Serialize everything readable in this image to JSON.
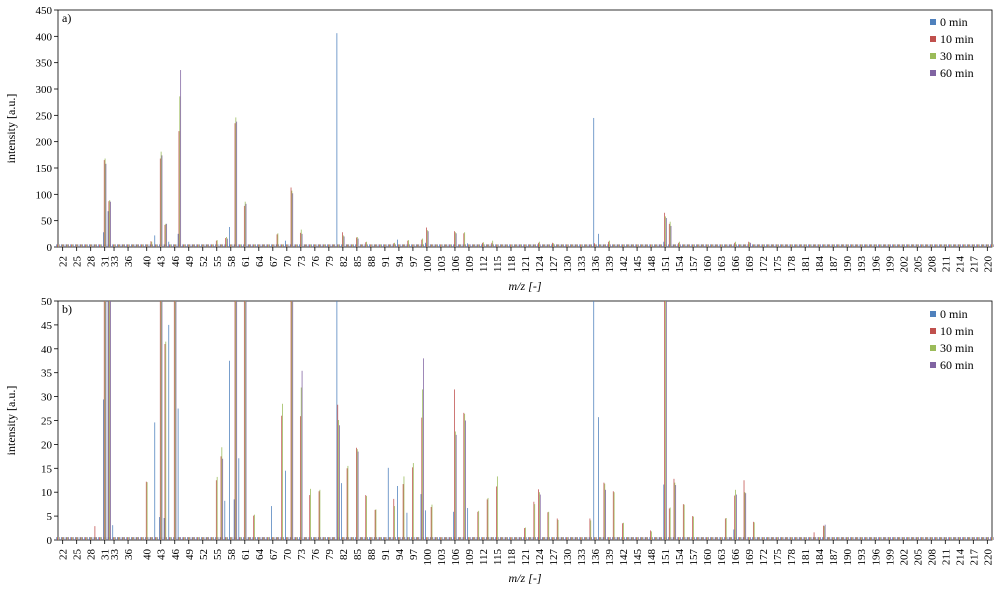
{
  "chart_data": [
    {
      "type": "bar",
      "panel_label": "a)",
      "xlabel": "m/z [-]",
      "ylabel": "intensity [a.u.]",
      "xlim": [
        21,
        221
      ],
      "ylim": [
        0,
        450
      ],
      "yticks": [
        0,
        50,
        100,
        150,
        200,
        250,
        300,
        350,
        400,
        450
      ],
      "xticks": [
        22,
        25,
        28,
        31,
        33,
        36,
        40,
        43,
        46,
        49,
        52,
        55,
        58,
        61,
        64,
        67,
        70,
        73,
        76,
        79,
        82,
        85,
        88,
        91,
        94,
        97,
        100,
        103,
        106,
        109,
        112,
        115,
        118,
        121,
        124,
        127,
        130,
        133,
        136,
        139,
        142,
        145,
        148,
        151,
        154,
        157,
        160,
        163,
        166,
        169,
        172,
        175,
        178,
        181,
        184,
        187,
        190,
        193,
        196,
        199,
        202,
        205,
        208,
        211,
        214,
        217,
        220
      ],
      "grid": false,
      "legend_position": "top-right",
      "baseline": 5,
      "series": [
        {
          "name": "0 min",
          "color": "#4f81bd",
          "points": [
            [
              31,
              28
            ],
            [
              32,
              68
            ],
            [
              42,
              22
            ],
            [
              45,
              10
            ],
            [
              47,
              25
            ],
            [
              58,
              38
            ],
            [
              70,
              12
            ],
            [
              81,
              406
            ],
            [
              94,
              14
            ],
            [
              100,
              8
            ],
            [
              109,
              7
            ],
            [
              136,
              245
            ],
            [
              137,
              25
            ],
            [
              151,
              10
            ]
          ]
        },
        {
          "name": "10 min",
          "color": "#c0504d",
          "points": [
            [
              31,
              165
            ],
            [
              32,
              87
            ],
            [
              41,
              11
            ],
            [
              43,
              168
            ],
            [
              44,
              42
            ],
            [
              47,
              220
            ],
            [
              55,
              12
            ],
            [
              57,
              17
            ],
            [
              59,
              235
            ],
            [
              61,
              78
            ],
            [
              68,
              24
            ],
            [
              71,
              113
            ],
            [
              73,
              27
            ],
            [
              82,
              28
            ],
            [
              85,
              18
            ],
            [
              87,
              9
            ],
            [
              93,
              7
            ],
            [
              96,
              12
            ],
            [
              99,
              14
            ],
            [
              100,
              37
            ],
            [
              106,
              30
            ],
            [
              108,
              26
            ],
            [
              112,
              8
            ],
            [
              114,
              8
            ],
            [
              124,
              8
            ],
            [
              127,
              8
            ],
            [
              136,
              7
            ],
            [
              139,
              10
            ],
            [
              151,
              65
            ],
            [
              152,
              44
            ],
            [
              154,
              8
            ],
            [
              166,
              8
            ],
            [
              169,
              10
            ]
          ]
        },
        {
          "name": "30 min",
          "color": "#9bbb59",
          "points": [
            [
              31,
              168
            ],
            [
              32,
              89
            ],
            [
              41,
              10
            ],
            [
              43,
              181
            ],
            [
              44,
              44
            ],
            [
              47,
              286
            ],
            [
              55,
              13
            ],
            [
              57,
              19
            ],
            [
              59,
              246
            ],
            [
              61,
              86
            ],
            [
              68,
              26
            ],
            [
              71,
              107
            ],
            [
              73,
              33
            ],
            [
              82,
              22
            ],
            [
              85,
              19
            ],
            [
              87,
              10
            ],
            [
              93,
              8
            ],
            [
              96,
              13
            ],
            [
              99,
              16
            ],
            [
              100,
              32
            ],
            [
              106,
              28
            ],
            [
              108,
              28
            ],
            [
              112,
              9
            ],
            [
              114,
              12
            ],
            [
              124,
              10
            ],
            [
              127,
              7
            ],
            [
              139,
              12
            ],
            [
              151,
              58
            ],
            [
              152,
              48
            ],
            [
              154,
              10
            ],
            [
              166,
              10
            ],
            [
              169,
              9
            ]
          ]
        },
        {
          "name": "60 min",
          "color": "#8064a2",
          "points": [
            [
              31,
              158
            ],
            [
              32,
              86
            ],
            [
              43,
              174
            ],
            [
              44,
              44
            ],
            [
              47,
              336
            ],
            [
              57,
              16
            ],
            [
              59,
              238
            ],
            [
              61,
              82
            ],
            [
              71,
              102
            ],
            [
              73,
              25
            ],
            [
              82,
              20
            ],
            [
              85,
              16
            ],
            [
              100,
              30
            ],
            [
              106,
              26
            ],
            [
              151,
              55
            ],
            [
              152,
              40
            ],
            [
              169,
              8
            ]
          ]
        }
      ]
    },
    {
      "type": "bar",
      "panel_label": "b)",
      "xlabel": "m/z [-]",
      "ylabel": "intensity [a.u.]",
      "xlim": [
        21,
        221
      ],
      "ylim": [
        0,
        50
      ],
      "yticks": [
        0,
        5,
        10,
        15,
        20,
        25,
        30,
        35,
        40,
        45,
        50
      ],
      "xticks": [
        22,
        25,
        28,
        31,
        33,
        36,
        40,
        43,
        46,
        49,
        52,
        55,
        58,
        61,
        64,
        67,
        70,
        73,
        76,
        79,
        82,
        85,
        88,
        91,
        94,
        97,
        100,
        103,
        106,
        109,
        112,
        115,
        118,
        121,
        124,
        127,
        130,
        133,
        136,
        139,
        142,
        145,
        148,
        151,
        154,
        157,
        160,
        163,
        166,
        169,
        172,
        175,
        178,
        181,
        184,
        187,
        190,
        193,
        196,
        199,
        202,
        205,
        208,
        211,
        214,
        217,
        220
      ],
      "grid": false,
      "legend_position": "top-right",
      "baseline": 0.6,
      "series": [
        {
          "name": "0 min",
          "color": "#4f81bd",
          "points": [
            [
              31,
              29.4
            ],
            [
              32,
              50
            ],
            [
              33,
              3.1
            ],
            [
              42,
              24.6
            ],
            [
              43,
              4.8
            ],
            [
              44,
              4.6
            ],
            [
              45,
              45
            ],
            [
              47,
              27.5
            ],
            [
              57,
              8.2
            ],
            [
              58,
              37.5
            ],
            [
              59,
              8.5
            ],
            [
              60,
              17.1
            ],
            [
              67,
              7.1
            ],
            [
              70,
              14.5
            ],
            [
              81,
              50
            ],
            [
              82,
              11.9
            ],
            [
              92,
              15.1
            ],
            [
              94,
              11.3
            ],
            [
              96,
              5.7
            ],
            [
              99,
              9.6
            ],
            [
              100,
              6.2
            ],
            [
              106,
              5.9
            ],
            [
              109,
              6.7
            ],
            [
              136,
              50
            ],
            [
              137,
              25.7
            ],
            [
              151,
              11.6
            ],
            [
              166,
              2.2
            ]
          ]
        },
        {
          "name": "10 min",
          "color": "#c0504d",
          "points": [
            [
              29,
              2.9
            ],
            [
              31,
              50
            ],
            [
              32,
              50
            ],
            [
              40,
              12.2
            ],
            [
              43,
              50
            ],
            [
              44,
              41
            ],
            [
              46,
              50
            ],
            [
              55,
              12.5
            ],
            [
              56,
              17.5
            ],
            [
              59,
              50
            ],
            [
              61,
              50
            ],
            [
              63,
              5.1
            ],
            [
              69,
              26
            ],
            [
              71,
              50
            ],
            [
              73,
              25.9
            ],
            [
              75,
              9.4
            ],
            [
              77,
              10.2
            ],
            [
              81,
              28.3
            ],
            [
              83,
              15
            ],
            [
              85,
              19.3
            ],
            [
              87,
              9.4
            ],
            [
              89,
              6.3
            ],
            [
              93,
              8.6
            ],
            [
              95,
              11.7
            ],
            [
              97,
              15.2
            ],
            [
              99,
              25.6
            ],
            [
              101,
              6.9
            ],
            [
              106,
              31.5
            ],
            [
              108,
              26.6
            ],
            [
              111,
              5.9
            ],
            [
              113,
              8.5
            ],
            [
              115,
              11.2
            ],
            [
              121,
              2.5
            ],
            [
              123,
              8
            ],
            [
              124,
              10.6
            ],
            [
              126,
              5.8
            ],
            [
              128,
              4.5
            ],
            [
              135,
              4.5
            ],
            [
              138,
              12
            ],
            [
              140,
              10.2
            ],
            [
              142,
              3.5
            ],
            [
              148,
              2
            ],
            [
              151,
              50
            ],
            [
              152,
              6.6
            ],
            [
              153,
              12.8
            ],
            [
              155,
              7.5
            ],
            [
              157,
              5
            ],
            [
              164,
              4.5
            ],
            [
              166,
              9.3
            ],
            [
              168,
              12.5
            ],
            [
              170,
              3.8
            ],
            [
              183,
              1.6
            ],
            [
              185,
              3
            ]
          ]
        },
        {
          "name": "30 min",
          "color": "#9bbb59",
          "points": [
            [
              31,
              50
            ],
            [
              32,
              50
            ],
            [
              40,
              12.1
            ],
            [
              43,
              50
            ],
            [
              44,
              41.5
            ],
            [
              46,
              50
            ],
            [
              55,
              13.2
            ],
            [
              56,
              19.4
            ],
            [
              59,
              50
            ],
            [
              61,
              50
            ],
            [
              63,
              5.3
            ],
            [
              69,
              28.5
            ],
            [
              71,
              50
            ],
            [
              73,
              31.9
            ],
            [
              75,
              10.7
            ],
            [
              77,
              10.5
            ],
            [
              81,
              25.1
            ],
            [
              83,
              15.5
            ],
            [
              85,
              19
            ],
            [
              87,
              9.2
            ],
            [
              89,
              6.4
            ],
            [
              93,
              7.1
            ],
            [
              95,
              13.3
            ],
            [
              97,
              16.1
            ],
            [
              99,
              31.5
            ],
            [
              101,
              7.4
            ],
            [
              106,
              22.7
            ],
            [
              108,
              26.4
            ],
            [
              111,
              6.1
            ],
            [
              113,
              8.8
            ],
            [
              115,
              13.3
            ],
            [
              121,
              2.6
            ],
            [
              123,
              7.5
            ],
            [
              124,
              10
            ],
            [
              126,
              5.9
            ],
            [
              128,
              4.2
            ],
            [
              135,
              4.1
            ],
            [
              138,
              11.8
            ],
            [
              140,
              10
            ],
            [
              142,
              3.6
            ],
            [
              148,
              1.8
            ],
            [
              151,
              50
            ],
            [
              152,
              6.8
            ],
            [
              153,
              12
            ],
            [
              155,
              7.4
            ],
            [
              157,
              4.9
            ],
            [
              164,
              4.6
            ],
            [
              166,
              10.5
            ],
            [
              168,
              10
            ],
            [
              170,
              3.7
            ],
            [
              185,
              2.9
            ]
          ]
        },
        {
          "name": "60 min",
          "color": "#8064a2",
          "points": [
            [
              31,
              50
            ],
            [
              32,
              50
            ],
            [
              43,
              50
            ],
            [
              46,
              50
            ],
            [
              56,
              17
            ],
            [
              59,
              50
            ],
            [
              61,
              50
            ],
            [
              71,
              50
            ],
            [
              73,
              35.4
            ],
            [
              81,
              24
            ],
            [
              85,
              18.5
            ],
            [
              99,
              38
            ],
            [
              106,
              22
            ],
            [
              108,
              25
            ],
            [
              124,
              9.5
            ],
            [
              138,
              10.5
            ],
            [
              151,
              50
            ],
            [
              153,
              11.5
            ],
            [
              166,
              9.5
            ],
            [
              168,
              9.8
            ],
            [
              185,
              3.2
            ]
          ]
        }
      ]
    }
  ]
}
